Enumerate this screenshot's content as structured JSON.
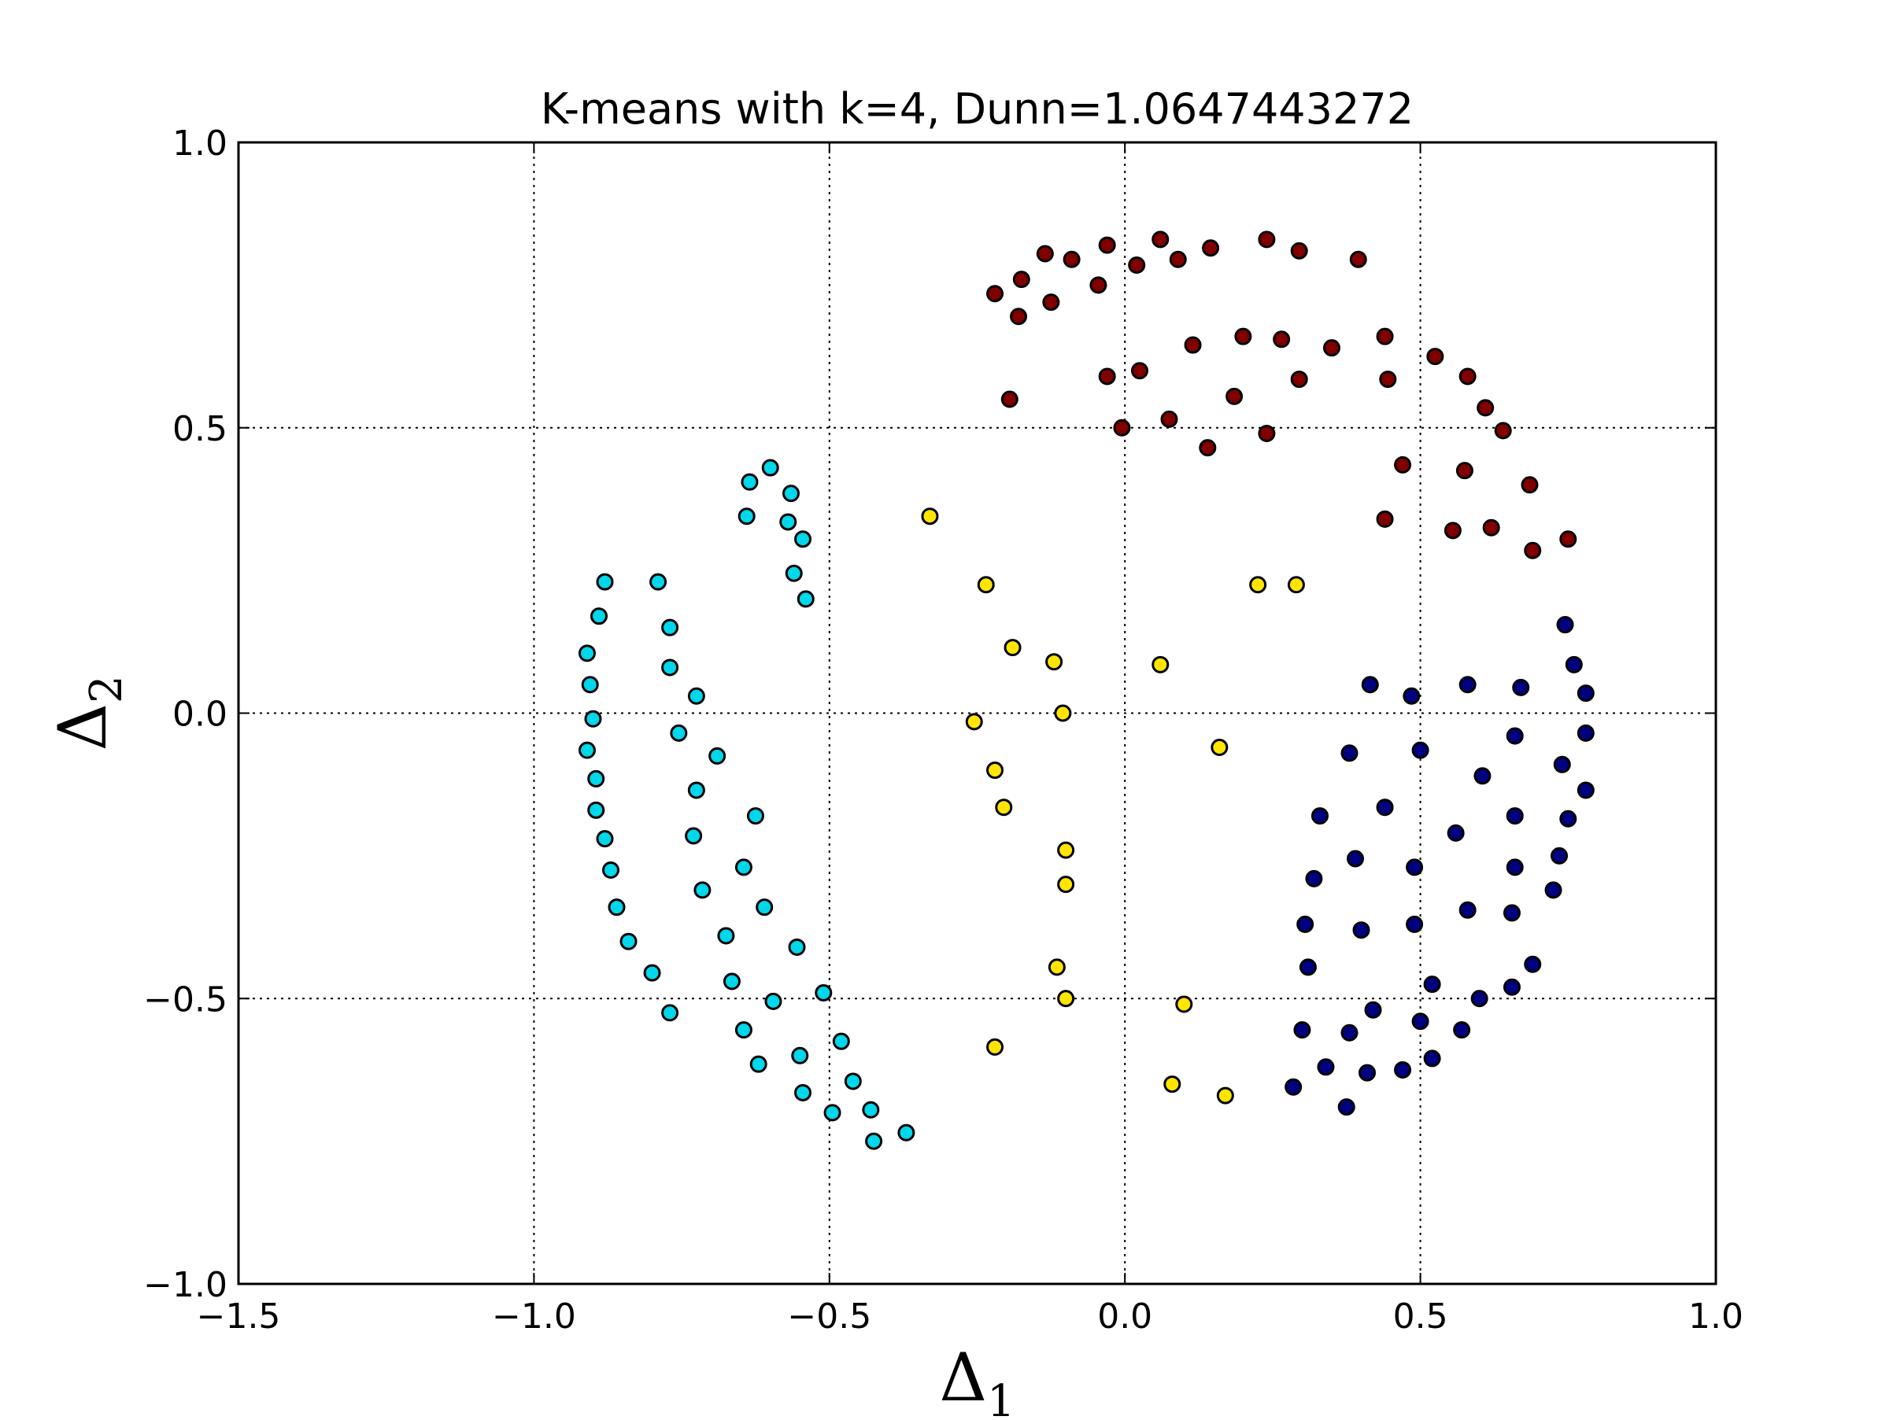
{
  "chart_data": {
    "type": "scatter",
    "title": "K-means with k=4, Dunn=1.0647443272",
    "xlabel": "Δ",
    "xlabel_subscript": "1",
    "ylabel": "Δ",
    "ylabel_subscript": "2",
    "xlim": [
      -1.5,
      1.0
    ],
    "ylim": [
      -1.0,
      1.0
    ],
    "xticks": [
      -1.5,
      -1.0,
      -0.5,
      0.0,
      0.5,
      1.0
    ],
    "yticks": [
      -1.0,
      -0.5,
      0.0,
      0.5,
      1.0
    ],
    "xtick_labels": [
      "−1.5",
      "−1.0",
      "−0.5",
      "0.0",
      "0.5",
      "1.0"
    ],
    "ytick_labels": [
      "−1.0",
      "−0.5",
      "0.0",
      "0.5",
      "1.0"
    ],
    "grid": true,
    "legend": "none",
    "series": [
      {
        "color": "#800000",
        "points": [
          [
            -0.22,
            0.735
          ],
          [
            -0.175,
            0.76
          ],
          [
            -0.18,
            0.695
          ],
          [
            -0.135,
            0.805
          ],
          [
            -0.125,
            0.72
          ],
          [
            -0.09,
            0.795
          ],
          [
            -0.045,
            0.75
          ],
          [
            -0.03,
            0.82
          ],
          [
            0.02,
            0.785
          ],
          [
            0.06,
            0.83
          ],
          [
            0.09,
            0.795
          ],
          [
            0.145,
            0.815
          ],
          [
            0.24,
            0.83
          ],
          [
            0.295,
            0.81
          ],
          [
            0.395,
            0.795
          ],
          [
            -0.195,
            0.55
          ],
          [
            -0.03,
            0.59
          ],
          [
            0.025,
            0.6
          ],
          [
            0.115,
            0.645
          ],
          [
            0.2,
            0.66
          ],
          [
            0.265,
            0.655
          ],
          [
            0.35,
            0.64
          ],
          [
            0.44,
            0.66
          ],
          [
            0.525,
            0.625
          ],
          [
            0.58,
            0.59
          ],
          [
            0.61,
            0.535
          ],
          [
            0.64,
            0.495
          ],
          [
            -0.005,
            0.5
          ],
          [
            0.075,
            0.515
          ],
          [
            0.14,
            0.465
          ],
          [
            0.185,
            0.555
          ],
          [
            0.24,
            0.49
          ],
          [
            0.295,
            0.585
          ],
          [
            0.445,
            0.585
          ],
          [
            0.47,
            0.435
          ],
          [
            0.575,
            0.425
          ],
          [
            0.685,
            0.4
          ],
          [
            0.44,
            0.34
          ],
          [
            0.555,
            0.32
          ],
          [
            0.62,
            0.325
          ],
          [
            0.69,
            0.285
          ],
          [
            0.75,
            0.305
          ]
        ]
      },
      {
        "color": "#00D7EB",
        "points": [
          [
            -0.6,
            0.43
          ],
          [
            -0.635,
            0.405
          ],
          [
            -0.565,
            0.385
          ],
          [
            -0.64,
            0.345
          ],
          [
            -0.57,
            0.335
          ],
          [
            -0.545,
            0.305
          ],
          [
            -0.56,
            0.245
          ],
          [
            -0.54,
            0.2
          ],
          [
            -0.88,
            0.23
          ],
          [
            -0.79,
            0.23
          ],
          [
            -0.89,
            0.17
          ],
          [
            -0.77,
            0.15
          ],
          [
            -0.91,
            0.105
          ],
          [
            -0.77,
            0.08
          ],
          [
            -0.905,
            0.05
          ],
          [
            -0.725,
            0.03
          ],
          [
            -0.9,
            -0.01
          ],
          [
            -0.755,
            -0.035
          ],
          [
            -0.91,
            -0.065
          ],
          [
            -0.69,
            -0.075
          ],
          [
            -0.895,
            -0.115
          ],
          [
            -0.725,
            -0.135
          ],
          [
            -0.895,
            -0.17
          ],
          [
            -0.625,
            -0.18
          ],
          [
            -0.88,
            -0.22
          ],
          [
            -0.73,
            -0.215
          ],
          [
            -0.87,
            -0.275
          ],
          [
            -0.645,
            -0.27
          ],
          [
            -0.86,
            -0.34
          ],
          [
            -0.715,
            -0.31
          ],
          [
            -0.84,
            -0.4
          ],
          [
            -0.61,
            -0.34
          ],
          [
            -0.8,
            -0.455
          ],
          [
            -0.675,
            -0.39
          ],
          [
            -0.77,
            -0.525
          ],
          [
            -0.555,
            -0.41
          ],
          [
            -0.665,
            -0.47
          ],
          [
            -0.51,
            -0.49
          ],
          [
            -0.595,
            -0.505
          ],
          [
            -0.645,
            -0.555
          ],
          [
            -0.48,
            -0.575
          ],
          [
            -0.55,
            -0.6
          ],
          [
            -0.62,
            -0.615
          ],
          [
            -0.46,
            -0.645
          ],
          [
            -0.545,
            -0.665
          ],
          [
            -0.495,
            -0.7
          ],
          [
            -0.43,
            -0.695
          ],
          [
            -0.37,
            -0.735
          ],
          [
            -0.425,
            -0.75
          ]
        ]
      },
      {
        "color": "#FFE500",
        "points": [
          [
            -0.33,
            0.345
          ],
          [
            -0.235,
            0.225
          ],
          [
            -0.19,
            0.115
          ],
          [
            -0.12,
            0.09
          ],
          [
            -0.105,
            0.0
          ],
          [
            -0.255,
            -0.015
          ],
          [
            -0.22,
            -0.1
          ],
          [
            -0.205,
            -0.165
          ],
          [
            -0.1,
            -0.24
          ],
          [
            -0.1,
            -0.3
          ],
          [
            -0.115,
            -0.445
          ],
          [
            -0.1,
            -0.5
          ],
          [
            -0.22,
            -0.585
          ],
          [
            0.06,
            0.085
          ],
          [
            0.225,
            0.225
          ],
          [
            0.29,
            0.225
          ],
          [
            0.16,
            -0.06
          ],
          [
            0.1,
            -0.51
          ],
          [
            0.08,
            -0.65
          ],
          [
            0.17,
            -0.67
          ]
        ]
      },
      {
        "color": "#000080",
        "points": [
          [
            0.415,
            0.05
          ],
          [
            0.485,
            0.03
          ],
          [
            0.58,
            0.05
          ],
          [
            0.67,
            0.045
          ],
          [
            0.745,
            0.155
          ],
          [
            0.76,
            0.085
          ],
          [
            0.78,
            0.035
          ],
          [
            0.78,
            -0.035
          ],
          [
            0.78,
            -0.135
          ],
          [
            0.66,
            -0.04
          ],
          [
            0.605,
            -0.11
          ],
          [
            0.74,
            -0.09
          ],
          [
            0.75,
            -0.185
          ],
          [
            0.735,
            -0.25
          ],
          [
            0.725,
            -0.31
          ],
          [
            0.38,
            -0.07
          ],
          [
            0.5,
            -0.065
          ],
          [
            0.33,
            -0.18
          ],
          [
            0.44,
            -0.165
          ],
          [
            0.56,
            -0.21
          ],
          [
            0.66,
            -0.18
          ],
          [
            0.32,
            -0.29
          ],
          [
            0.39,
            -0.255
          ],
          [
            0.49,
            -0.27
          ],
          [
            0.66,
            -0.27
          ],
          [
            0.305,
            -0.37
          ],
          [
            0.4,
            -0.38
          ],
          [
            0.49,
            -0.37
          ],
          [
            0.58,
            -0.345
          ],
          [
            0.655,
            -0.35
          ],
          [
            0.31,
            -0.445
          ],
          [
            0.52,
            -0.475
          ],
          [
            0.6,
            -0.5
          ],
          [
            0.655,
            -0.48
          ],
          [
            0.69,
            -0.44
          ],
          [
            0.3,
            -0.555
          ],
          [
            0.38,
            -0.56
          ],
          [
            0.42,
            -0.52
          ],
          [
            0.5,
            -0.54
          ],
          [
            0.57,
            -0.555
          ],
          [
            0.285,
            -0.655
          ],
          [
            0.34,
            -0.62
          ],
          [
            0.41,
            -0.63
          ],
          [
            0.47,
            -0.625
          ],
          [
            0.52,
            -0.605
          ],
          [
            0.375,
            -0.69
          ]
        ]
      }
    ]
  }
}
